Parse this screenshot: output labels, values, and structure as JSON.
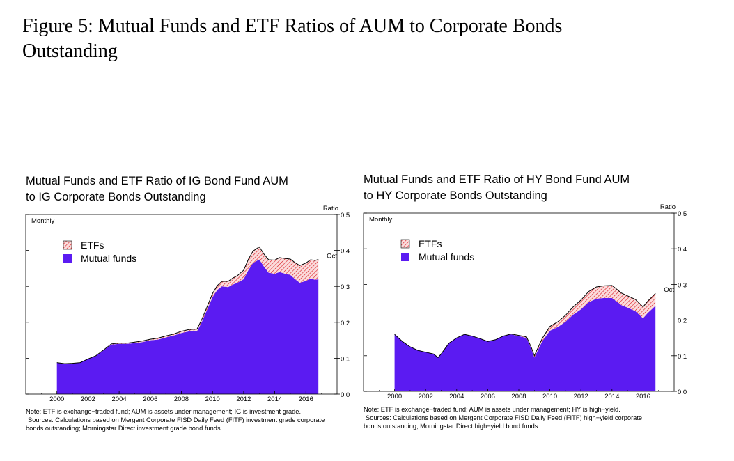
{
  "figure": {
    "title_line1": "Figure 5: Mutual Funds and ETF Ratios of AUM to Corporate Bonds",
    "title_line2": "Outstanding"
  },
  "colors": {
    "mutual_funds": "#5b1bf2",
    "etf_hatch": "#d9161e",
    "etf_background": "#fbdcdc",
    "axis": "#000000"
  },
  "chart_data": [
    {
      "type": "area",
      "stacked": true,
      "title_line1": "Mutual Funds and ETF Ratio of IG Bond Fund AUM",
      "title_line2": "to IG Corporate Bonds Outstanding",
      "frequency_label": "Monthly",
      "ylabel": "Ratio",
      "ylim": [
        0.0,
        0.5
      ],
      "yticks": [
        "0.0",
        "0.1",
        "0.2",
        "0.3",
        "0.4",
        "0.5"
      ],
      "xlim": [
        1998.0,
        2018.0
      ],
      "xticks": [
        "2000",
        "2002",
        "2004",
        "2006",
        "2008",
        "2010",
        "2012",
        "2014",
        "2016"
      ],
      "end_label": "Oct",
      "legend": {
        "position": "top-left",
        "entries": [
          "ETFs",
          "Mutual funds"
        ]
      },
      "grid": false,
      "series": [
        {
          "name": "Mutual funds",
          "x": [
            2000.0,
            2000.5,
            2001.0,
            2001.5,
            2002.0,
            2002.5,
            2003.0,
            2003.5,
            2004.0,
            2004.5,
            2005.0,
            2005.5,
            2006.0,
            2006.5,
            2007.0,
            2007.5,
            2008.0,
            2008.5,
            2009.0,
            2009.3,
            2009.6,
            2010.0,
            2010.3,
            2010.6,
            2011.0,
            2011.3,
            2011.6,
            2012.0,
            2012.3,
            2012.6,
            2013.0,
            2013.3,
            2013.6,
            2014.0,
            2014.3,
            2014.6,
            2015.0,
            2015.3,
            2015.6,
            2016.0,
            2016.3,
            2016.6,
            2016.8
          ],
          "values": [
            0.088,
            0.085,
            0.086,
            0.088,
            0.098,
            0.106,
            0.122,
            0.138,
            0.14,
            0.14,
            0.142,
            0.145,
            0.15,
            0.152,
            0.158,
            0.163,
            0.17,
            0.175,
            0.175,
            0.2,
            0.23,
            0.27,
            0.29,
            0.3,
            0.298,
            0.305,
            0.31,
            0.32,
            0.345,
            0.365,
            0.375,
            0.355,
            0.338,
            0.335,
            0.34,
            0.336,
            0.332,
            0.32,
            0.31,
            0.315,
            0.322,
            0.318,
            0.32
          ]
        },
        {
          "name": "ETFs",
          "x": [
            2000.0,
            2000.5,
            2001.0,
            2001.5,
            2002.0,
            2002.5,
            2003.0,
            2003.5,
            2004.0,
            2004.5,
            2005.0,
            2005.5,
            2006.0,
            2006.5,
            2007.0,
            2007.5,
            2008.0,
            2008.5,
            2009.0,
            2009.3,
            2009.6,
            2010.0,
            2010.3,
            2010.6,
            2011.0,
            2011.3,
            2011.6,
            2012.0,
            2012.3,
            2012.6,
            2013.0,
            2013.3,
            2013.6,
            2014.0,
            2014.3,
            2014.6,
            2015.0,
            2015.3,
            2015.6,
            2016.0,
            2016.3,
            2016.6,
            2016.8
          ],
          "values": [
            0.0,
            0.0,
            0.0,
            0.0,
            0.0,
            0.001,
            0.001,
            0.002,
            0.002,
            0.002,
            0.003,
            0.003,
            0.003,
            0.004,
            0.004,
            0.004,
            0.005,
            0.005,
            0.006,
            0.007,
            0.008,
            0.01,
            0.012,
            0.014,
            0.016,
            0.018,
            0.02,
            0.025,
            0.03,
            0.033,
            0.035,
            0.035,
            0.036,
            0.038,
            0.04,
            0.042,
            0.044,
            0.046,
            0.048,
            0.05,
            0.052,
            0.054,
            0.055
          ]
        }
      ],
      "note_line1": "Note: ETF is exchange−traded fund; AUM is assets under management; IG is investment grade.",
      "note_line2": "Sources: Calculations based on Mergent Corporate FISD Daily Feed (FITF) investment grade corporate",
      "note_line3": "bonds outstanding; Morningstar Direct investment grade bond funds."
    },
    {
      "type": "area",
      "stacked": true,
      "title_line1": "Mutual Funds and ETF Ratio of HY Bond Fund AUM",
      "title_line2": "to HY Corporate Bonds Outstanding",
      "frequency_label": "Monthly",
      "ylabel": "Ratio",
      "ylim": [
        0.0,
        0.5
      ],
      "yticks": [
        "0.0",
        "0.1",
        "0.2",
        "0.3",
        "0.4",
        "0.5"
      ],
      "xlim": [
        1998.0,
        2018.0
      ],
      "xticks": [
        "2000",
        "2002",
        "2004",
        "2006",
        "2008",
        "2010",
        "2012",
        "2014",
        "2016"
      ],
      "end_label": "Oct",
      "legend": {
        "position": "top-left",
        "entries": [
          "ETFs",
          "Mutual funds"
        ]
      },
      "grid": false,
      "series": [
        {
          "name": "Mutual funds",
          "x": [
            2000.0,
            2000.5,
            2001.0,
            2001.5,
            2002.0,
            2002.5,
            2002.8,
            2003.0,
            2003.5,
            2004.0,
            2004.5,
            2005.0,
            2005.5,
            2006.0,
            2006.5,
            2007.0,
            2007.5,
            2008.0,
            2008.5,
            2008.8,
            2009.0,
            2009.5,
            2010.0,
            2010.5,
            2011.0,
            2011.5,
            2012.0,
            2012.5,
            2013.0,
            2013.5,
            2014.0,
            2014.3,
            2014.6,
            2015.0,
            2015.5,
            2016.0,
            2016.3,
            2016.6,
            2016.8
          ],
          "values": [
            0.16,
            0.14,
            0.125,
            0.115,
            0.11,
            0.105,
            0.095,
            0.105,
            0.135,
            0.15,
            0.16,
            0.155,
            0.148,
            0.14,
            0.145,
            0.155,
            0.16,
            0.155,
            0.15,
            0.12,
            0.095,
            0.14,
            0.17,
            0.18,
            0.195,
            0.215,
            0.23,
            0.25,
            0.26,
            0.262,
            0.262,
            0.252,
            0.242,
            0.235,
            0.225,
            0.205,
            0.22,
            0.232,
            0.24
          ]
        },
        {
          "name": "ETFs",
          "x": [
            2000.0,
            2000.5,
            2001.0,
            2001.5,
            2002.0,
            2002.5,
            2002.8,
            2003.0,
            2003.5,
            2004.0,
            2004.5,
            2005.0,
            2005.5,
            2006.0,
            2006.5,
            2007.0,
            2007.5,
            2008.0,
            2008.5,
            2008.8,
            2009.0,
            2009.5,
            2010.0,
            2010.5,
            2011.0,
            2011.5,
            2012.0,
            2012.5,
            2013.0,
            2013.5,
            2014.0,
            2014.3,
            2014.6,
            2015.0,
            2015.5,
            2016.0,
            2016.3,
            2016.6,
            2016.8
          ],
          "values": [
            0.0,
            0.0,
            0.0,
            0.0,
            0.0,
            0.0,
            0.0,
            0.0,
            0.0,
            0.0,
            0.0,
            0.0,
            0.0,
            0.0,
            0.0,
            0.0,
            0.001,
            0.002,
            0.003,
            0.004,
            0.005,
            0.008,
            0.012,
            0.015,
            0.018,
            0.022,
            0.026,
            0.03,
            0.033,
            0.034,
            0.035,
            0.035,
            0.034,
            0.033,
            0.033,
            0.032,
            0.033,
            0.034,
            0.035
          ]
        }
      ],
      "note_line1": "Note: ETF is exchange−traded fund; AUM is assets under management; HY is high−yield.",
      "note_line2": "Sources: Calculations based on Mergent Corporate FISD Daily Feed (FITF) high−yield corporate",
      "note_line3": "bonds outstanding; Morningstar Direct high−yield bond funds."
    }
  ]
}
